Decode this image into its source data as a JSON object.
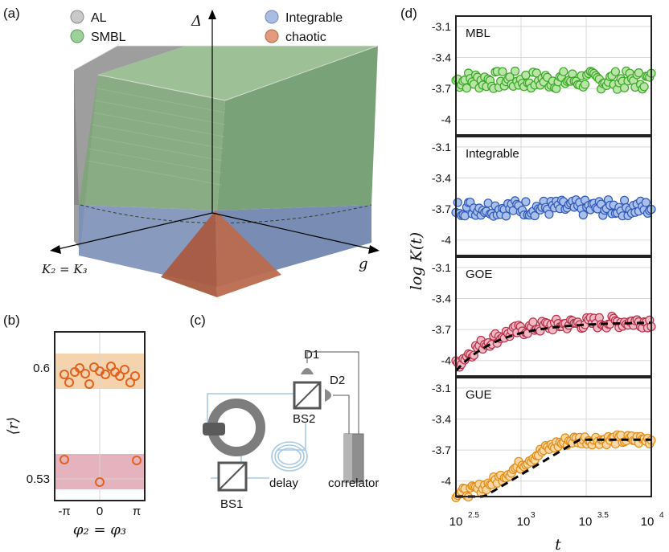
{
  "panel_labels": {
    "a": "(a)",
    "b": "(b)",
    "c": "(c)",
    "d": "(d)"
  },
  "panel_a": {
    "legend": [
      {
        "label": "AL",
        "color": "#9b9b9b"
      },
      {
        "label": "SMBL",
        "color": "#6aa86a"
      },
      {
        "label": "Integrable",
        "color": "#8aa2cc"
      },
      {
        "label": "chaotic",
        "color": "#c87a5e"
      }
    ],
    "axes": {
      "vertical": "Δ",
      "left": "K₂ = K₃",
      "right": "g"
    },
    "colors": {
      "al": "#8e8e8e",
      "smbl": "#7fa57a",
      "integrable": "#7c8fb8",
      "chaotic": "#b8654a"
    }
  },
  "panel_b": {
    "ylabel": "⟨r⟩",
    "xlabel": "φ₂ = φ₃",
    "yticks": [
      "0.6",
      "0.53"
    ],
    "xticks": [
      "-π",
      "0",
      "π"
    ],
    "upper_band_color": "#f2c08c",
    "lower_band_color": "#dc9aa8",
    "marker_color": "#e0621e"
  },
  "panel_c": {
    "labels": {
      "d1": "D1",
      "d2": "D2",
      "bs1": "BS1",
      "bs2": "BS2",
      "delay": "delay",
      "correlator": "correlator"
    }
  },
  "panel_d": {
    "ylabel": "log K(t)",
    "xlabel": "t",
    "xticks": [
      "10",
      "10",
      "10",
      "10"
    ],
    "xtick_exponents": [
      "2.5",
      "",
      "3.5",
      "4"
    ],
    "yticks": [
      "-3.1",
      "-3.4",
      "-3.7",
      "-4"
    ]
  },
  "chart_data": [
    {
      "type": "scatter",
      "title": "MBL",
      "xlabel": "t",
      "ylabel": "log K(t)",
      "xscale": "log10",
      "xlim": [
        2.5,
        4
      ],
      "ylim": [
        -4.15,
        -3.0
      ],
      "marker_color": "#3aa626",
      "fill_color": "#b9e6a6",
      "series": [
        {
          "name": "data",
          "mean": -3.62,
          "spread": 0.09
        }
      ],
      "fit": null
    },
    {
      "type": "scatter",
      "title": "Integrable",
      "xlabel": "t",
      "ylabel": "log K(t)",
      "xscale": "log10",
      "xlim": [
        2.5,
        4
      ],
      "ylim": [
        -4.15,
        -3.0
      ],
      "marker_color": "#2f58b8",
      "fill_color": "#a9c0ea",
      "series": [
        {
          "name": "data",
          "mean": -3.69,
          "spread": 0.08
        }
      ],
      "fit": null
    },
    {
      "type": "scatter",
      "title": "GOE",
      "xlabel": "t",
      "ylabel": "log K(t)",
      "xscale": "log10",
      "xlim": [
        2.5,
        4
      ],
      "ylim": [
        -4.15,
        -3.0
      ],
      "marker_color": "#b8304a",
      "fill_color": "#f2b9c4",
      "series": [
        {
          "name": "data",
          "start": -4.05,
          "plateau": -3.62,
          "rate": 3.2
        }
      ],
      "fit": {
        "start": -4.1,
        "plateau": -3.63,
        "rate": 3.0,
        "style": "dashed"
      }
    },
    {
      "type": "scatter",
      "title": "GUE",
      "xlabel": "t",
      "ylabel": "log K(t)",
      "xscale": "log10",
      "xlim": [
        2.5,
        4
      ],
      "ylim": [
        -4.15,
        -3.0
      ],
      "marker_color": "#e38a12",
      "fill_color": "#fbd9a4",
      "series": [
        {
          "name": "data",
          "start": -4.12,
          "plateau": -3.6,
          "ramp_end": 3.45
        }
      ],
      "fit": {
        "start": -4.2,
        "plateau": -3.6,
        "ramp_start": 2.65,
        "ramp_end": 3.45,
        "style": "dashed"
      }
    }
  ]
}
